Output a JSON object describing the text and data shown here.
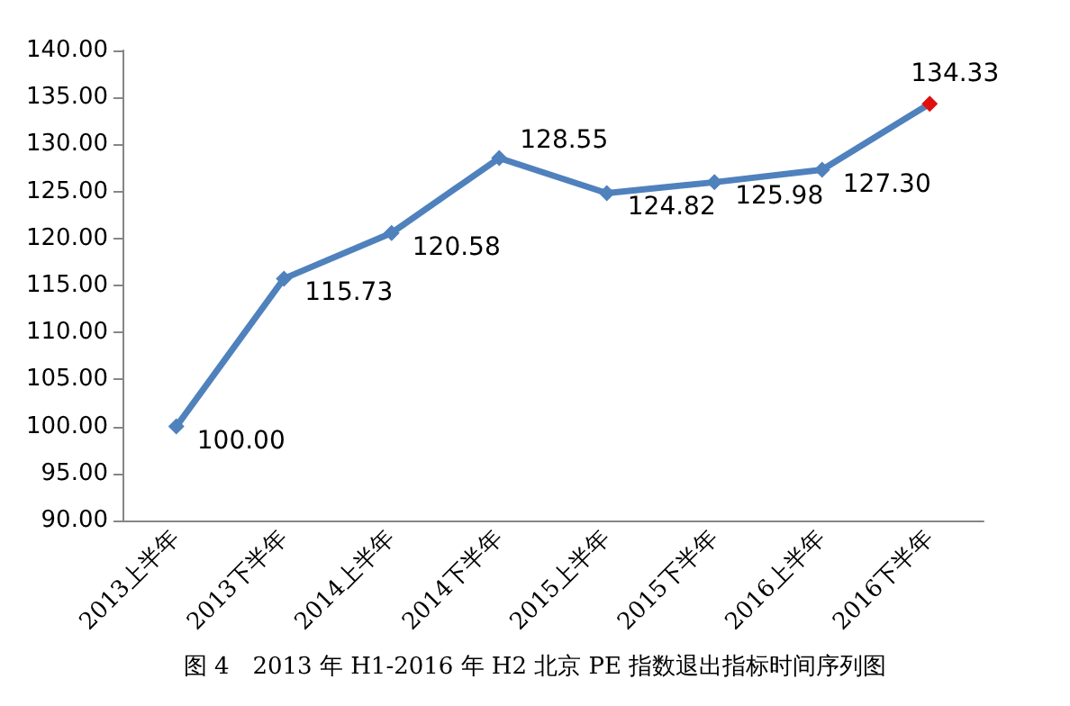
{
  "chart_data": {
    "type": "line",
    "annotations": [
      "图 4　2013 年 H1-2016 年 H2 北京 PE 指数退出指标时间序列图"
    ],
    "categories": [
      "2013上半年",
      "2013下半年",
      "2014上半年",
      "2014下半年",
      "2015上半年",
      "2015下半年",
      "2016上半年",
      "2016下半年"
    ],
    "series": [
      {
        "color": "#4f81bd",
        "colors": [
          "#4f81bd",
          "#4f81bd",
          "#4f81bd",
          "#4f81bd",
          "#4f81bd",
          "#4f81bd",
          "#4f81bd",
          "#e01010"
        ],
        "values": [
          100.0,
          115.73,
          120.58,
          128.55,
          124.82,
          125.98,
          127.3,
          134.33
        ],
        "value_labels": [
          "100.00",
          "115.73",
          "120.58",
          "128.55",
          "124.82",
          "125.98",
          "127.30",
          "134.33"
        ]
      }
    ],
    "ylim": [
      90,
      140
    ],
    "yticks": [
      {
        "value": 90,
        "label": "90.00"
      },
      {
        "value": 95,
        "label": "95.00"
      },
      {
        "value": 100,
        "label": "100.00"
      },
      {
        "value": 105,
        "label": "105.00"
      },
      {
        "value": 110,
        "label": "110.00"
      },
      {
        "value": 115,
        "label": "115.00"
      },
      {
        "value": 120,
        "label": "120.00"
      },
      {
        "value": 125,
        "label": "125.00"
      },
      {
        "value": 130,
        "label": "130.00"
      },
      {
        "value": 135,
        "label": "135.00"
      },
      {
        "value": 140,
        "label": "140.00"
      }
    ],
    "grid": false,
    "marker": "diamond",
    "line_style": "solid"
  }
}
